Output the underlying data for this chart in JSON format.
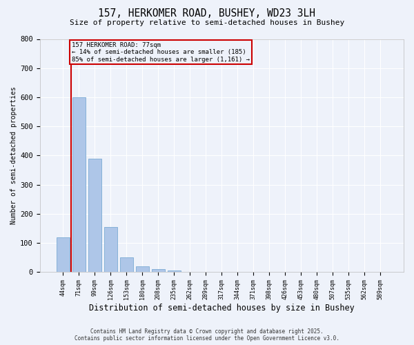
{
  "title1": "157, HERKOMER ROAD, BUSHEY, WD23 3LH",
  "title2": "Size of property relative to semi-detached houses in Bushey",
  "xlabel": "Distribution of semi-detached houses by size in Bushey",
  "ylabel": "Number of semi-detached properties",
  "bins": [
    "44sqm",
    "71sqm",
    "99sqm",
    "126sqm",
    "153sqm",
    "180sqm",
    "208sqm",
    "235sqm",
    "262sqm",
    "289sqm",
    "317sqm",
    "344sqm",
    "371sqm",
    "398sqm",
    "426sqm",
    "453sqm",
    "480sqm",
    "507sqm",
    "535sqm",
    "562sqm",
    "589sqm"
  ],
  "values": [
    120,
    600,
    390,
    155,
    50,
    20,
    10,
    5,
    0,
    0,
    0,
    0,
    0,
    0,
    0,
    0,
    0,
    0,
    0,
    0,
    0
  ],
  "bar_color": "#aec6e8",
  "bar_edge_color": "#7aaad4",
  "property_line_color": "#cc0000",
  "annotation_text": "157 HERKOMER ROAD: 77sqm\n← 14% of semi-detached houses are smaller (185)\n85% of semi-detached houses are larger (1,161) →",
  "annotation_box_color": "#cc0000",
  "background_color": "#eef2fa",
  "grid_color": "#ffffff",
  "ylim": [
    0,
    800
  ],
  "yticks": [
    0,
    100,
    200,
    300,
    400,
    500,
    600,
    700,
    800
  ],
  "footer1": "Contains HM Land Registry data © Crown copyright and database right 2025.",
  "footer2": "Contains public sector information licensed under the Open Government Licence v3.0."
}
